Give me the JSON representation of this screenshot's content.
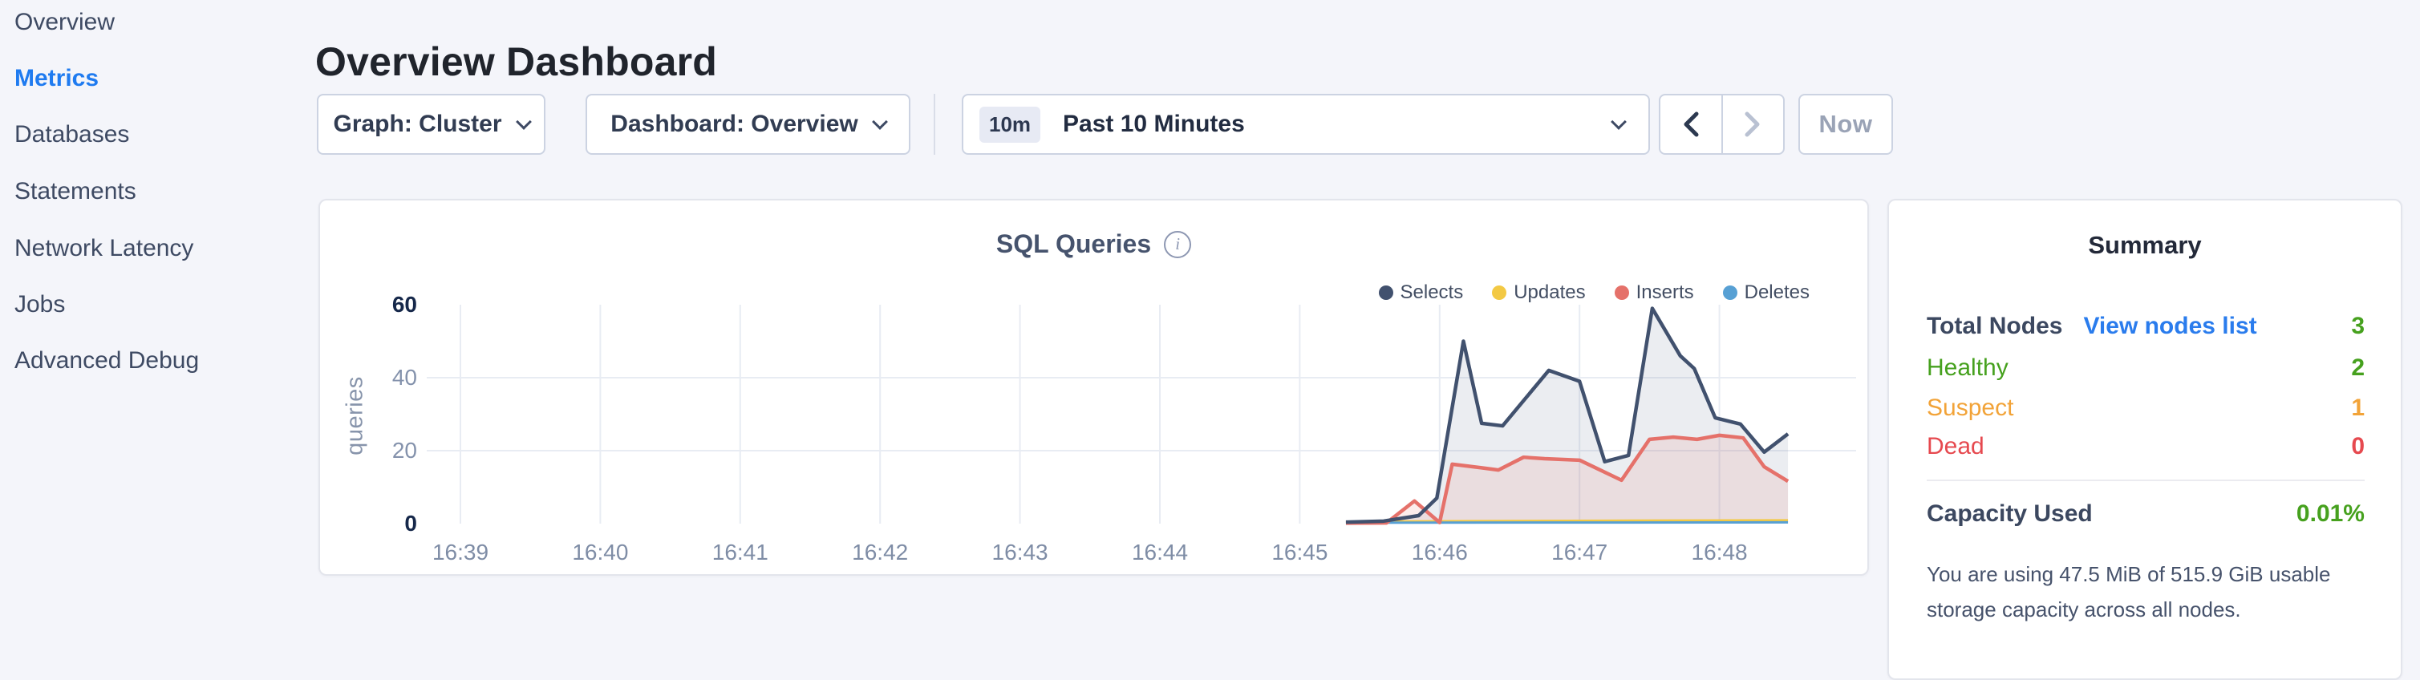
{
  "sidebar": {
    "items": [
      {
        "label": "Overview",
        "active": false
      },
      {
        "label": "Metrics",
        "active": true
      },
      {
        "label": "Databases",
        "active": false
      },
      {
        "label": "Statements",
        "active": false
      },
      {
        "label": "Network Latency",
        "active": false
      },
      {
        "label": "Jobs",
        "active": false
      },
      {
        "label": "Advanced Debug",
        "active": false
      }
    ]
  },
  "header": {
    "title": "Overview Dashboard"
  },
  "controls": {
    "graph_dropdown": "Graph: Cluster",
    "dashboard_dropdown": "Dashboard: Overview",
    "time_range": {
      "badge": "10m",
      "label": "Past 10 Minutes"
    },
    "now_label": "Now"
  },
  "chart": {
    "title": "SQL Queries",
    "info_glyph": "i"
  },
  "chart_data": {
    "type": "area",
    "title": "SQL Queries",
    "ylabel": "queries",
    "xlabel": "",
    "x_unit": "minutes after 16:39",
    "x_tick_labels": [
      "16:39",
      "16:40",
      "16:41",
      "16:42",
      "16:43",
      "16:44",
      "16:45",
      "16:46",
      "16:47",
      "16:48"
    ],
    "y_ticks": [
      0,
      20,
      40,
      60
    ],
    "ylim": [
      0,
      62
    ],
    "grid": "horizontal at 20 and 40, vertical at each minute",
    "legend_position": "top-right",
    "legend": [
      {
        "label": "Selects",
        "color": "#41516e"
      },
      {
        "label": "Updates",
        "color": "#f3c944"
      },
      {
        "label": "Inserts",
        "color": "#e5716a"
      },
      {
        "label": "Deletes",
        "color": "#57a0d4"
      }
    ],
    "series": [
      {
        "name": "Selects",
        "color": "#41516e",
        "width": 4.5,
        "fill": "rgba(114,128,153,0.14)",
        "points": [
          [
            6.33,
            0.4
          ],
          [
            6.6,
            0.7
          ],
          [
            6.85,
            2.2
          ],
          [
            6.98,
            7
          ],
          [
            7.17,
            50
          ],
          [
            7.3,
            27.5
          ],
          [
            7.45,
            26.8
          ],
          [
            7.78,
            42
          ],
          [
            8.0,
            39
          ],
          [
            8.18,
            17
          ],
          [
            8.35,
            18.7
          ],
          [
            8.52,
            59
          ],
          [
            8.72,
            46
          ],
          [
            8.82,
            42.5
          ],
          [
            8.97,
            29
          ],
          [
            9.15,
            27.3
          ],
          [
            9.32,
            19.6
          ],
          [
            9.49,
            24.6
          ]
        ]
      },
      {
        "name": "Inserts",
        "color": "#e5716a",
        "width": 4.5,
        "fill": "rgba(229,113,106,0.13)",
        "points": [
          [
            6.33,
            0.15
          ],
          [
            6.62,
            0.2
          ],
          [
            6.82,
            6.2
          ],
          [
            7.0,
            0.3
          ],
          [
            7.09,
            16.3
          ],
          [
            7.3,
            15.3
          ],
          [
            7.42,
            14.7
          ],
          [
            7.6,
            18.2
          ],
          [
            7.75,
            17.8
          ],
          [
            8.0,
            17.4
          ],
          [
            8.12,
            15.2
          ],
          [
            8.3,
            11.9
          ],
          [
            8.5,
            23.1
          ],
          [
            8.67,
            23.7
          ],
          [
            8.84,
            23.1
          ],
          [
            9.0,
            24.2
          ],
          [
            9.17,
            23.5
          ],
          [
            9.32,
            15.6
          ],
          [
            9.49,
            11.6
          ]
        ]
      },
      {
        "name": "Updates",
        "color": "#f3c944",
        "width": 3,
        "fill": null,
        "points": [
          [
            6.33,
            0.5
          ],
          [
            7.2,
            0.7
          ],
          [
            8.2,
            0.8
          ],
          [
            9.49,
            0.9
          ]
        ]
      },
      {
        "name": "Deletes",
        "color": "#57a0d4",
        "width": 3,
        "fill": null,
        "points": [
          [
            6.33,
            0.25
          ],
          [
            8.0,
            0.3
          ],
          [
            9.49,
            0.35
          ]
        ]
      }
    ]
  },
  "summary": {
    "title": "Summary",
    "total_nodes_label": "Total Nodes",
    "view_nodes_link": "View nodes list",
    "total_nodes_value": "3",
    "healthy_label": "Healthy",
    "healthy_value": "2",
    "suspect_label": "Suspect",
    "suspect_value": "1",
    "dead_label": "Dead",
    "dead_value": "0",
    "capacity_label": "Capacity Used",
    "capacity_value": "0.01%",
    "capacity_desc": "You are using 47.5 MiB of 515.9 GiB usable storage capacity across all nodes."
  }
}
